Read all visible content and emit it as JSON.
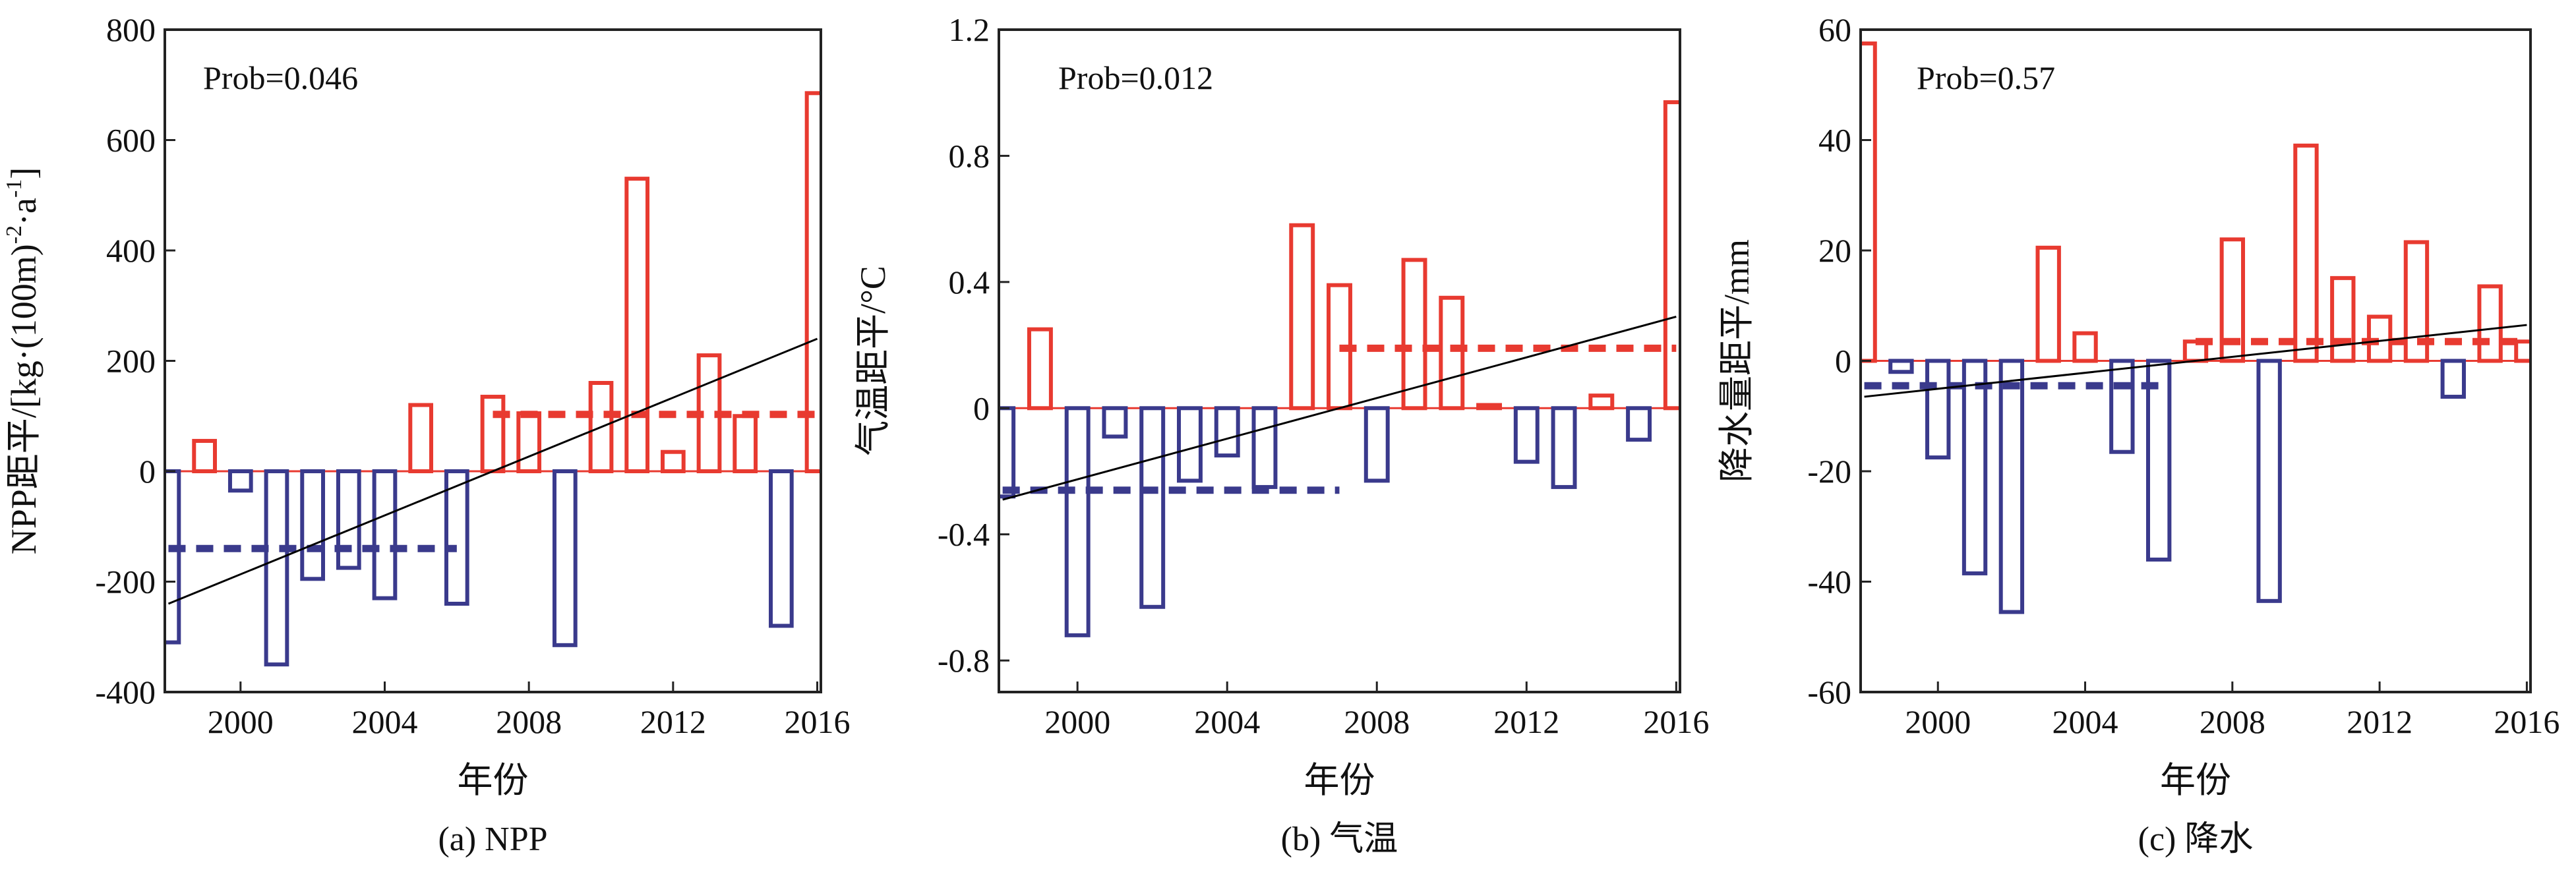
{
  "colors": {
    "positive": "#e83a30",
    "negative": "#3a3a8c",
    "trend": "#000000",
    "frame": "#222222"
  },
  "x_label": "年份",
  "years": [
    1998,
    1999,
    2000,
    2001,
    2002,
    2003,
    2004,
    2005,
    2006,
    2007,
    2008,
    2009,
    2010,
    2011,
    2012,
    2013,
    2014,
    2015,
    2016
  ],
  "chart_data": [
    {
      "type": "bar",
      "caption": "(a) NPP",
      "prob_text": "Prob=0.046",
      "xlabel": "年份",
      "ylabel": "NPP距平/[kg·(100m)-2·a-1]",
      "ylabel_parts": {
        "main": "NPP距平/[kg·(100m)",
        "sup1": "-2",
        "mid": "·a",
        "sup2": "-1",
        "end": "]"
      },
      "xlim": [
        1997.9,
        2016.1
      ],
      "ylim": [
        -400,
        800
      ],
      "yticks": [
        -400,
        -200,
        0,
        200,
        400,
        600,
        800
      ],
      "ytick_labels": [
        "-400",
        "-200",
        "0",
        "200",
        "400",
        "600",
        "800"
      ],
      "xticks": [
        2000,
        2004,
        2008,
        2012,
        2016
      ],
      "xtick_labels": [
        "2000",
        "2004",
        "2008",
        "2012",
        "2016"
      ],
      "values": [
        -310,
        55,
        -35,
        -350,
        -195,
        -175,
        -230,
        120,
        -240,
        135,
        105,
        -315,
        160,
        530,
        35,
        210,
        100,
        -280,
        685
      ],
      "mean_lines": [
        {
          "from": 1998,
          "to": 2006,
          "value": -140,
          "sign": "negative"
        },
        {
          "from": 2007,
          "to": 2016,
          "value": 103,
          "sign": "positive"
        }
      ],
      "trend": {
        "from": [
          1998,
          -240
        ],
        "to": [
          2016,
          240
        ]
      }
    },
    {
      "type": "bar",
      "caption": "(b) 气温",
      "prob_text": "Prob=0.012",
      "xlabel": "年份",
      "ylabel": "气温距平/°C",
      "ylabel_parts": {
        "main": "气温距平/°C",
        "sup1": "",
        "mid": "",
        "sup2": "",
        "end": ""
      },
      "xlim": [
        1997.9,
        2016.1
      ],
      "ylim": [
        -0.9,
        1.2
      ],
      "yticks": [
        -0.8,
        -0.4,
        0,
        0.4,
        0.8,
        1.2
      ],
      "ytick_labels": [
        "-0.8",
        "-0.4",
        "0",
        "0.4",
        "0.8",
        "1.2"
      ],
      "xticks": [
        2000,
        2004,
        2008,
        2012,
        2016
      ],
      "xtick_labels": [
        "2000",
        "2004",
        "2008",
        "2012",
        "2016"
      ],
      "values": [
        -0.28,
        0.25,
        -0.72,
        -0.09,
        -0.63,
        -0.23,
        -0.15,
        -0.25,
        0.58,
        0.39,
        -0.23,
        0.47,
        0.35,
        0.01,
        -0.17,
        -0.25,
        0.04,
        -0.1,
        0.97
      ],
      "mean_lines": [
        {
          "from": 1998,
          "to": 2007,
          "value": -0.26,
          "sign": "negative"
        },
        {
          "from": 2007,
          "to": 2016,
          "value": 0.19,
          "sign": "positive"
        }
      ],
      "trend": {
        "from": [
          1998,
          -0.29
        ],
        "to": [
          2016,
          0.29
        ]
      }
    },
    {
      "type": "bar",
      "caption": "(c) 降水",
      "prob_text": "Prob=0.57",
      "xlabel": "年份",
      "ylabel": "降水量距平/mm",
      "ylabel_parts": {
        "main": "降水量距平/mm",
        "sup1": "",
        "mid": "",
        "sup2": "",
        "end": ""
      },
      "xlim": [
        1997.9,
        2016.1
      ],
      "ylim": [
        -60,
        60
      ],
      "yticks": [
        -60,
        -40,
        -20,
        0,
        20,
        40,
        60
      ],
      "ytick_labels": [
        "-60",
        "-40",
        "-20",
        "0",
        "20",
        "40",
        "60"
      ],
      "xticks": [
        2000,
        2004,
        2008,
        2012,
        2016
      ],
      "xtick_labels": [
        "2000",
        "2004",
        "2008",
        "2012",
        "2016"
      ],
      "values": [
        57.5,
        -2,
        -17.5,
        -38.5,
        -45.5,
        20.5,
        5,
        -16.5,
        -36,
        3.5,
        22,
        -43.5,
        39,
        15,
        8,
        21.5,
        -6.5,
        13.5,
        3.5
      ],
      "mean_lines": [
        {
          "from": 1998,
          "to": 2006,
          "value": -4.5,
          "sign": "negative"
        },
        {
          "from": 2007,
          "to": 2016,
          "value": 3.5,
          "sign": "positive"
        }
      ],
      "trend": {
        "from": [
          1998,
          -6.5
        ],
        "to": [
          2016,
          6.5
        ]
      }
    }
  ]
}
